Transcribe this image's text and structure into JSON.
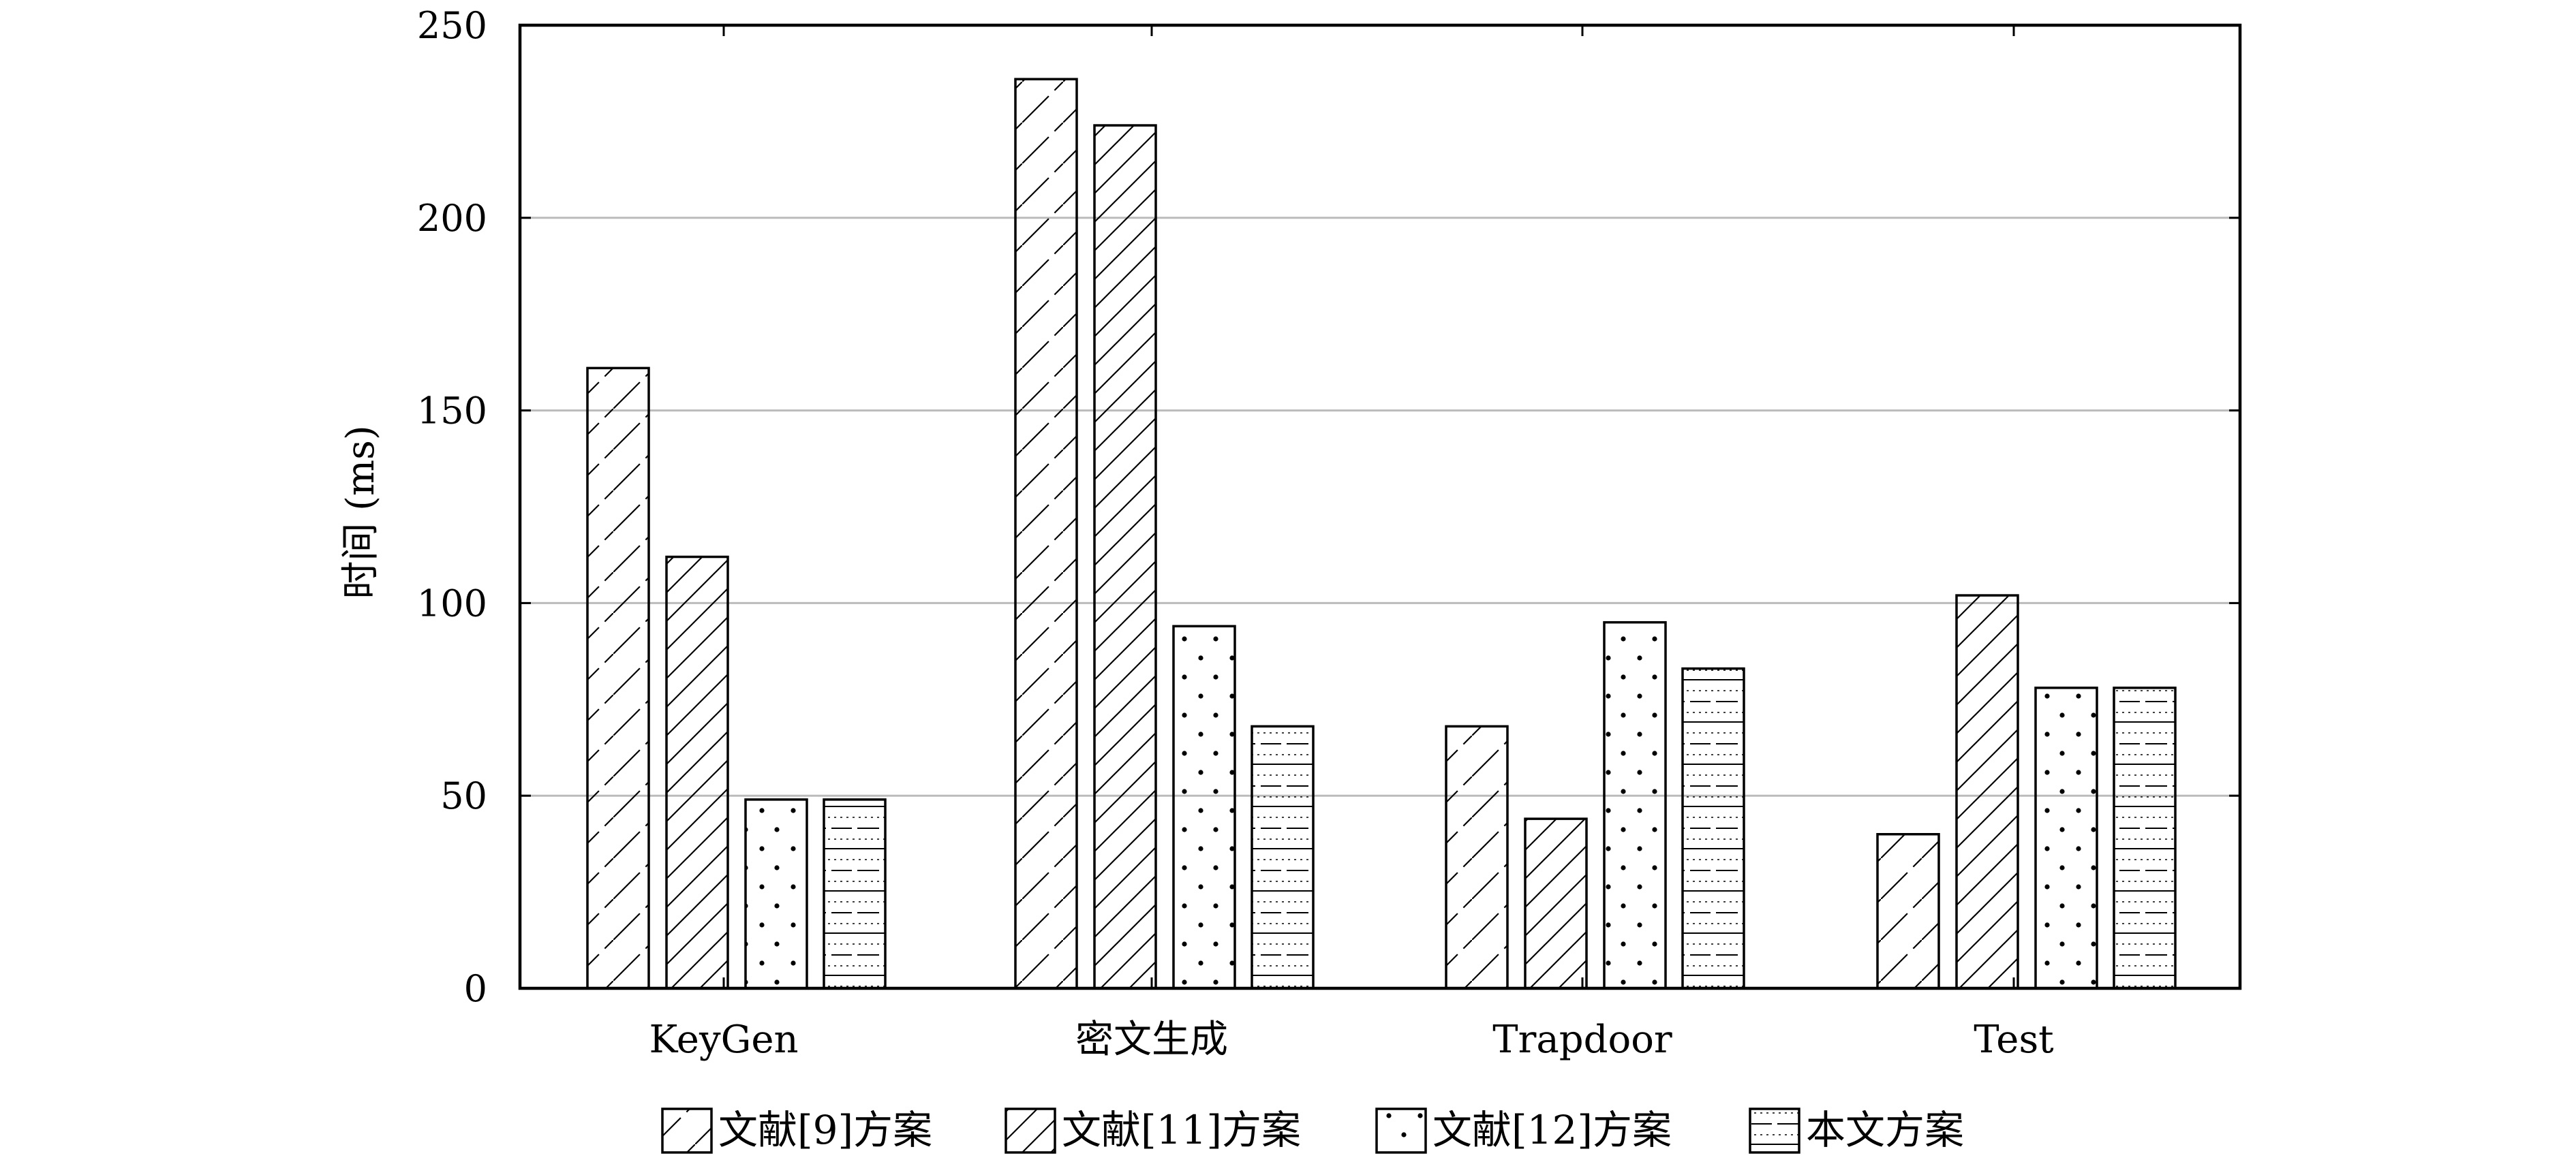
{
  "chart_data": {
    "type": "bar",
    "categories": [
      "KeyGen",
      "密文生成",
      "Trapdoor",
      "Test"
    ],
    "series": [
      {
        "name": "文献[9]方案",
        "values": [
          161,
          236,
          68,
          40
        ],
        "pattern": "hatch-sparse"
      },
      {
        "name": "文献[11]方案",
        "values": [
          112,
          224,
          44,
          102
        ],
        "pattern": "hatch-dense"
      },
      {
        "name": "文献[12]方案",
        "values": [
          49,
          94,
          95,
          78
        ],
        "pattern": "dots"
      },
      {
        "name": "本文方案",
        "values": [
          49,
          68,
          83,
          78
        ],
        "pattern": "hlines"
      }
    ],
    "ylabel": "时间 (ms)",
    "ylim": [
      0,
      250
    ],
    "yticks": [
      0,
      50,
      100,
      150,
      200,
      250
    ],
    "grid": "horizontal",
    "legend_position": "bottom",
    "colors": {
      "bar_fill": "#ffffff",
      "stroke": "#000000",
      "grid": "#bbbbbb"
    }
  }
}
